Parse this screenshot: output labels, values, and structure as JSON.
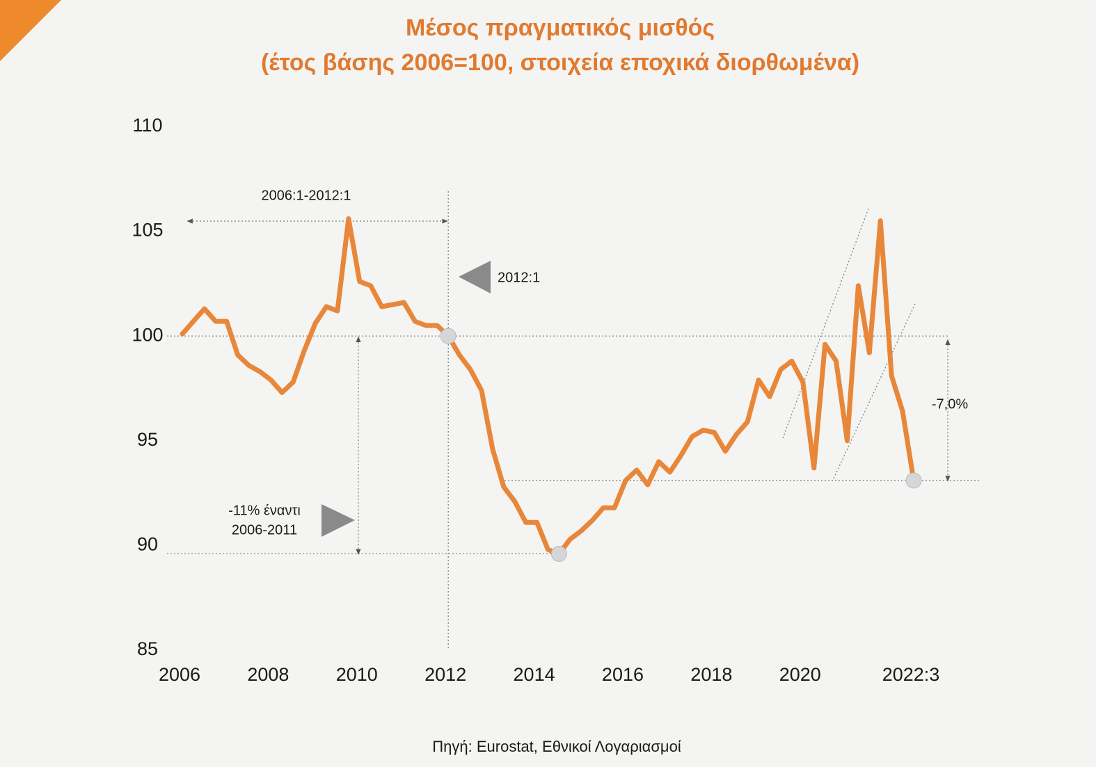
{
  "chart_data": {
    "type": "line",
    "title": "Μέσος πραγματικός μισθός",
    "subtitle": "(έτος βάσης 2006=100, στοιχεία εποχικά διορθωμένα)",
    "source": "Πηγή: Eurostat, Εθνικοί Λογαριασμοί",
    "annotations": [
      "2006:1-2012:1",
      "2012:1",
      "-11% έναντι",
      "2006-2011",
      "-7,0%"
    ],
    "x": [
      2006,
      2006.25,
      2006.5,
      2006.75,
      2007,
      2007.25,
      2007.5,
      2007.75,
      2008,
      2008.25,
      2008.5,
      2008.75,
      2009,
      2009.25,
      2009.5,
      2009.75,
      2010,
      2010.25,
      2010.5,
      2010.75,
      2011,
      2011.25,
      2011.5,
      2011.75,
      2012,
      2012.25,
      2012.5,
      2012.75,
      2013,
      2013.25,
      2013.5,
      2013.75,
      2014,
      2014.25,
      2014.5,
      2014.75,
      2015,
      2015.25,
      2015.5,
      2015.75,
      2016,
      2016.25,
      2016.5,
      2016.75,
      2017,
      2017.25,
      2017.5,
      2017.75,
      2018,
      2018.25,
      2018.5,
      2018.75,
      2019,
      2019.25,
      2019.5,
      2019.75,
      2020,
      2020.25,
      2020.5,
      2020.75,
      2021,
      2021.25,
      2021.5,
      2021.75,
      2022,
      2022.25,
      2022.5
    ],
    "values": [
      100.1,
      100.7,
      101.3,
      100.7,
      100.7,
      99.1,
      98.6,
      98.3,
      97.9,
      97.3,
      97.8,
      99.3,
      100.6,
      101.4,
      101.2,
      105.6,
      102.6,
      102.4,
      101.4,
      101.5,
      101.6,
      100.7,
      100.5,
      100.5,
      100.0,
      99.1,
      98.4,
      97.4,
      94.6,
      92.8,
      92.1,
      91.1,
      91.1,
      89.8,
      89.6,
      90.3,
      90.7,
      91.2,
      91.8,
      91.8,
      93.1,
      93.6,
      92.9,
      94.0,
      93.5,
      94.3,
      95.2,
      95.5,
      95.4,
      94.5,
      95.3,
      95.9,
      97.9,
      97.1,
      98.4,
      98.8,
      97.8,
      93.7,
      99.6,
      98.8,
      95.0,
      102.4,
      99.2,
      105.5,
      98.1,
      96.4,
      93.1
    ],
    "color": "#e8873a",
    "markers_x": [
      2012,
      2014.5,
      2022.5
    ],
    "xlim": [
      2006,
      2022.5
    ],
    "xticks": [
      2006,
      2008,
      2010,
      2012,
      2014,
      2016,
      2018,
      2020,
      {
        "value": 2022.5,
        "label": "2022:3"
      }
    ],
    "ylim": [
      85,
      110
    ],
    "yticks": [
      85,
      90,
      95,
      100,
      105,
      110
    ],
    "grid": false
  }
}
